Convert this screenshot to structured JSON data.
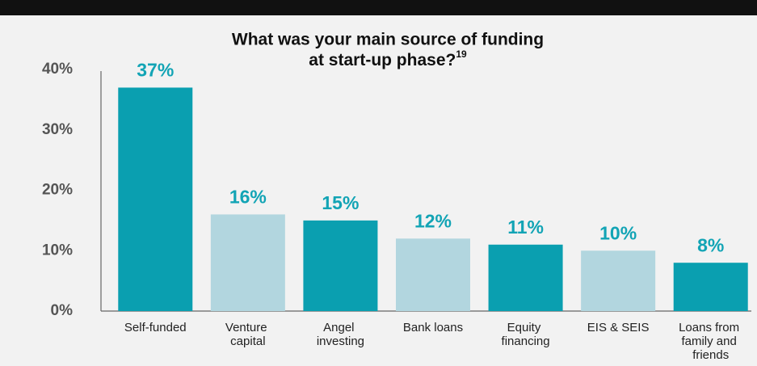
{
  "chart_data": {
    "type": "bar",
    "title": [
      "What was your main source of funding",
      "at start-up phase?"
    ],
    "title_superscript": "19",
    "categories": [
      "Self-funded",
      "Venture capital",
      "Angel investing",
      "Bank loans",
      "Equity financing",
      "EIS & SEIS",
      "Loans from family and friends"
    ],
    "values": [
      37,
      16,
      15,
      12,
      11,
      10,
      8
    ],
    "value_labels": [
      "37%",
      "16%",
      "15%",
      "12%",
      "11%",
      "10%",
      "8%"
    ],
    "colors": [
      "#0a9fb0",
      "#b2d6df",
      "#0a9fb0",
      "#b2d6df",
      "#0a9fb0",
      "#b2d6df",
      "#0a9fb0"
    ],
    "label_color": "#12a4b5",
    "ylim": [
      0,
      40
    ],
    "yticks": [
      {
        "value": 0,
        "label": "0%"
      },
      {
        "value": 10,
        "label": "10%"
      },
      {
        "value": 20,
        "label": "20%"
      },
      {
        "value": 30,
        "label": "30%"
      },
      {
        "value": 40,
        "label": "40%"
      }
    ],
    "grid": false
  }
}
